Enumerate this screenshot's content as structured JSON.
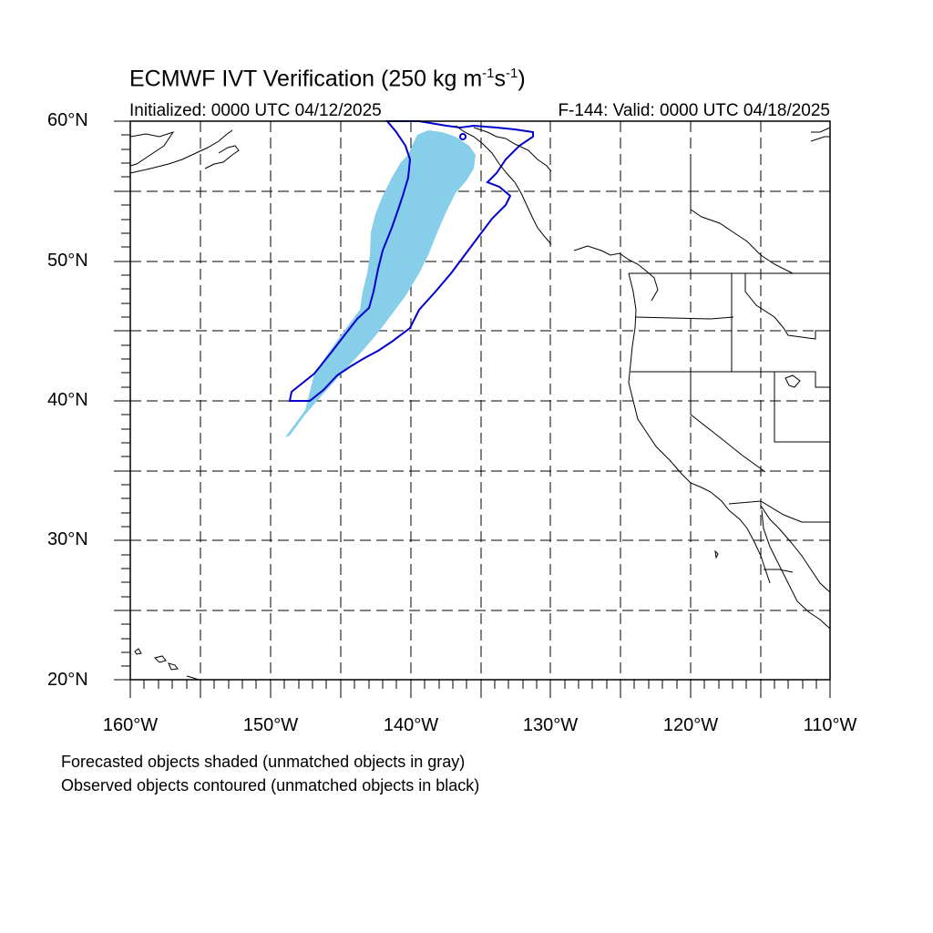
{
  "title": {
    "main": "ECMWF IVT Verification (250 kg m",
    "sup1": "-1",
    "mid": "s",
    "sup2": "-1",
    "end": ")"
  },
  "initialized": "Initialized: 0000 UTC 04/12/2025",
  "valid": "F-144: Valid: 0000 UTC 04/18/2025",
  "lat_labels": [
    {
      "text": "60°N",
      "value": 60
    },
    {
      "text": "50°N",
      "value": 50
    },
    {
      "text": "40°N",
      "value": 40
    },
    {
      "text": "30°N",
      "value": 30
    },
    {
      "text": "20°N",
      "value": 20
    }
  ],
  "lon_labels": [
    {
      "text": "160°W",
      "value": -160
    },
    {
      "text": "150°W",
      "value": -150
    },
    {
      "text": "140°W",
      "value": -140
    },
    {
      "text": "130°W",
      "value": -130
    },
    {
      "text": "120°W",
      "value": -120
    },
    {
      "text": "110°W",
      "value": -110
    }
  ],
  "notes": {
    "forecast": "Forecasted objects shaded (unmatched objects in gray)",
    "observed": "Observed objects contoured (unmatched objects in black)"
  },
  "colors": {
    "forecast_fill": "#87ceeb",
    "observed_contour": "#0000cc",
    "coastline": "#000000",
    "grid": "#000000"
  },
  "map_extent": {
    "lon": [
      -160,
      -110
    ],
    "lat": [
      20,
      60
    ]
  }
}
